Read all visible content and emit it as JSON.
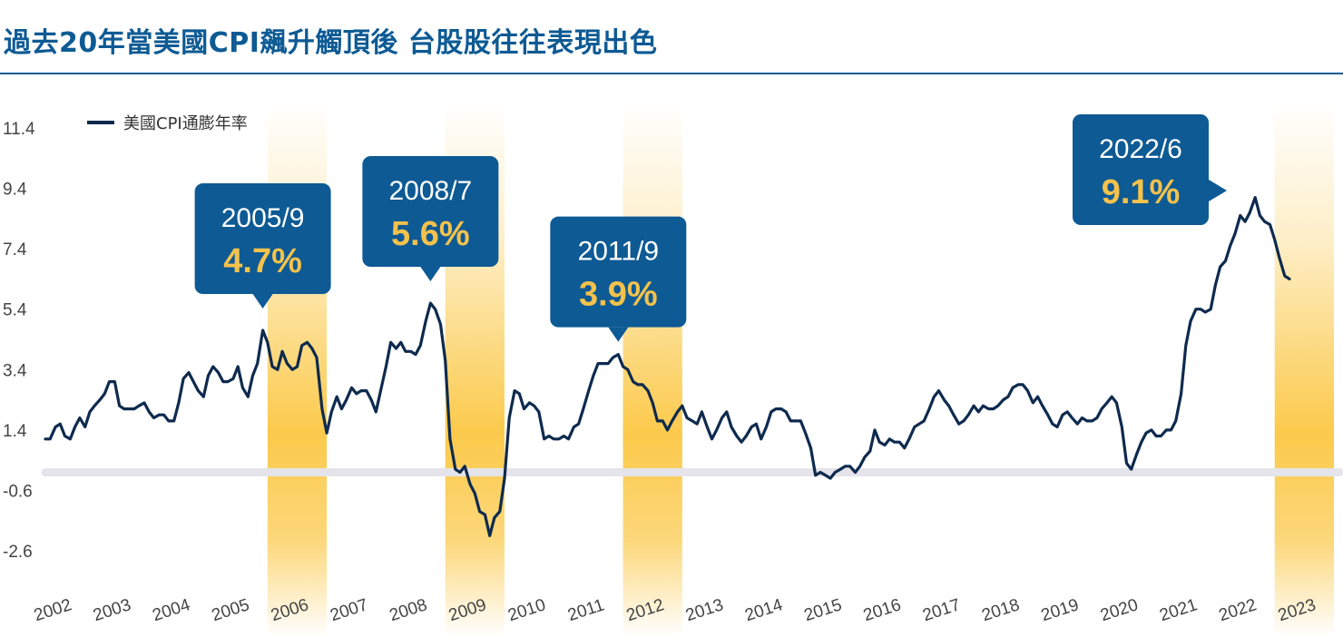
{
  "header": {
    "title": "過去20年當美國CPI飆升觸頂後 台股股往往表現出色"
  },
  "chart_data": {
    "type": "line",
    "title": "過去20年當美國CPI飆升觸頂後 台股股往往表現出色",
    "legend": {
      "label": "美國CPI通膨年率",
      "placement": "top-left"
    },
    "ylim": [
      -2.6,
      11.4
    ],
    "yticks": [
      "11.4",
      "9.4",
      "7.4",
      "5.4",
      "3.4",
      "1.4",
      "-0.6",
      "-2.6"
    ],
    "xticks": [
      "2002",
      "2003",
      "2004",
      "2005",
      "2006",
      "2007",
      "2008",
      "2009",
      "2010",
      "2011",
      "2012",
      "2013",
      "2014",
      "2015",
      "2016",
      "2017",
      "2018",
      "2019",
      "2020",
      "2021",
      "2022",
      "2023"
    ],
    "xlim": [
      2002.0,
      2023.75
    ],
    "zero_line": 0,
    "colors": {
      "line": "#0e2a4e",
      "callout_bg": "#0d5a94",
      "callout_value": "#f5c24c",
      "band": "#fbc742",
      "zero_line": "#e4e4ea",
      "title": "#0d5a94"
    },
    "highlight_bands": [
      {
        "from": 2005.75,
        "to": 2006.75
      },
      {
        "from": 2008.75,
        "to": 2009.75
      },
      {
        "from": 2011.75,
        "to": 2012.75
      },
      {
        "from": 2022.75,
        "to": 2023.75
      }
    ],
    "annotations": [
      {
        "date": "2005/9",
        "value": "4.7%",
        "x": 2005.67,
        "y": 4.7
      },
      {
        "date": "2008/7",
        "value": "5.6%",
        "x": 2008.5,
        "y": 5.6
      },
      {
        "date": "2011/9",
        "value": "3.9%",
        "x": 2011.67,
        "y": 3.9
      },
      {
        "date": "2022/6",
        "value": "9.1%",
        "x": 2022.42,
        "y": 9.1
      }
    ],
    "series": [
      {
        "name": "美國CPI通膨年率",
        "x": [
          2002.0,
          2002.08,
          2002.17,
          2002.25,
          2002.33,
          2002.42,
          2002.5,
          2002.58,
          2002.67,
          2002.75,
          2002.83,
          2002.92,
          2003.0,
          2003.08,
          2003.17,
          2003.25,
          2003.33,
          2003.42,
          2003.5,
          2003.58,
          2003.67,
          2003.75,
          2003.83,
          2003.92,
          2004.0,
          2004.08,
          2004.17,
          2004.25,
          2004.33,
          2004.42,
          2004.5,
          2004.58,
          2004.67,
          2004.75,
          2004.83,
          2004.92,
          2005.0,
          2005.08,
          2005.17,
          2005.25,
          2005.33,
          2005.42,
          2005.5,
          2005.58,
          2005.67,
          2005.75,
          2005.83,
          2005.92,
          2006.0,
          2006.08,
          2006.17,
          2006.25,
          2006.33,
          2006.42,
          2006.5,
          2006.58,
          2006.67,
          2006.75,
          2006.83,
          2006.92,
          2007.0,
          2007.08,
          2007.17,
          2007.25,
          2007.33,
          2007.42,
          2007.5,
          2007.58,
          2007.67,
          2007.75,
          2007.83,
          2007.92,
          2008.0,
          2008.08,
          2008.17,
          2008.25,
          2008.33,
          2008.42,
          2008.5,
          2008.58,
          2008.67,
          2008.75,
          2008.83,
          2008.92,
          2009.0,
          2009.08,
          2009.17,
          2009.25,
          2009.33,
          2009.42,
          2009.5,
          2009.58,
          2009.67,
          2009.75,
          2009.83,
          2009.92,
          2010.0,
          2010.08,
          2010.17,
          2010.25,
          2010.33,
          2010.42,
          2010.5,
          2010.58,
          2010.67,
          2010.75,
          2010.83,
          2010.92,
          2011.0,
          2011.08,
          2011.17,
          2011.25,
          2011.33,
          2011.42,
          2011.5,
          2011.58,
          2011.67,
          2011.75,
          2011.83,
          2011.92,
          2012.0,
          2012.08,
          2012.17,
          2012.25,
          2012.33,
          2012.42,
          2012.5,
          2012.58,
          2012.67,
          2012.75,
          2012.83,
          2012.92,
          2013.0,
          2013.08,
          2013.17,
          2013.25,
          2013.33,
          2013.42,
          2013.5,
          2013.58,
          2013.67,
          2013.75,
          2013.83,
          2013.92,
          2014.0,
          2014.08,
          2014.17,
          2014.25,
          2014.33,
          2014.42,
          2014.5,
          2014.58,
          2014.67,
          2014.75,
          2014.83,
          2014.92,
          2015.0,
          2015.08,
          2015.17,
          2015.25,
          2015.33,
          2015.42,
          2015.5,
          2015.58,
          2015.67,
          2015.75,
          2015.83,
          2015.92,
          2016.0,
          2016.08,
          2016.17,
          2016.25,
          2016.33,
          2016.42,
          2016.5,
          2016.58,
          2016.67,
          2016.75,
          2016.83,
          2016.92,
          2017.0,
          2017.08,
          2017.17,
          2017.25,
          2017.33,
          2017.42,
          2017.5,
          2017.58,
          2017.67,
          2017.75,
          2017.83,
          2017.92,
          2018.0,
          2018.08,
          2018.17,
          2018.25,
          2018.33,
          2018.42,
          2018.5,
          2018.58,
          2018.67,
          2018.75,
          2018.83,
          2018.92,
          2019.0,
          2019.08,
          2019.17,
          2019.25,
          2019.33,
          2019.42,
          2019.5,
          2019.58,
          2019.67,
          2019.75,
          2019.83,
          2019.92,
          2020.0,
          2020.08,
          2020.17,
          2020.25,
          2020.33,
          2020.42,
          2020.5,
          2020.58,
          2020.67,
          2020.75,
          2020.83,
          2020.92,
          2021.0,
          2021.08,
          2021.17,
          2021.25,
          2021.33,
          2021.42,
          2021.5,
          2021.58,
          2021.67,
          2021.75,
          2021.83,
          2021.92,
          2022.0,
          2022.08,
          2022.17,
          2022.25,
          2022.33,
          2022.42,
          2022.5,
          2022.58,
          2022.67,
          2022.75,
          2022.83,
          2022.92,
          2023.0
        ],
        "values": [
          1.1,
          1.1,
          1.5,
          1.6,
          1.2,
          1.1,
          1.5,
          1.8,
          1.5,
          2.0,
          2.2,
          2.4,
          2.6,
          3.0,
          3.0,
          2.2,
          2.1,
          2.1,
          2.1,
          2.2,
          2.3,
          2.0,
          1.8,
          1.9,
          1.9,
          1.7,
          1.7,
          2.3,
          3.1,
          3.3,
          3.0,
          2.7,
          2.5,
          3.2,
          3.5,
          3.3,
          3.0,
          3.0,
          3.1,
          3.5,
          2.8,
          2.5,
          3.2,
          3.6,
          4.7,
          4.3,
          3.5,
          3.4,
          4.0,
          3.6,
          3.4,
          3.5,
          4.2,
          4.3,
          4.1,
          3.8,
          2.1,
          1.3,
          2.0,
          2.5,
          2.1,
          2.4,
          2.8,
          2.6,
          2.7,
          2.7,
          2.4,
          2.0,
          2.8,
          3.5,
          4.3,
          4.1,
          4.3,
          4.0,
          4.0,
          3.9,
          4.2,
          5.0,
          5.6,
          5.4,
          4.9,
          3.7,
          1.1,
          0.1,
          0.0,
          0.2,
          -0.4,
          -0.7,
          -1.3,
          -1.4,
          -2.1,
          -1.5,
          -1.3,
          -0.2,
          1.8,
          2.7,
          2.6,
          2.1,
          2.3,
          2.2,
          2.0,
          1.1,
          1.2,
          1.1,
          1.1,
          1.2,
          1.1,
          1.5,
          1.6,
          2.1,
          2.7,
          3.2,
          3.6,
          3.6,
          3.6,
          3.8,
          3.9,
          3.5,
          3.4,
          3.0,
          2.9,
          2.9,
          2.7,
          2.3,
          1.7,
          1.7,
          1.4,
          1.7,
          2.0,
          2.2,
          1.8,
          1.7,
          1.6,
          2.0,
          1.5,
          1.1,
          1.4,
          1.8,
          2.0,
          1.5,
          1.2,
          1.0,
          1.2,
          1.5,
          1.6,
          1.1,
          1.5,
          2.0,
          2.1,
          2.1,
          2.0,
          1.7,
          1.7,
          1.7,
          1.3,
          0.8,
          -0.1,
          0.0,
          -0.1,
          -0.2,
          0.0,
          0.1,
          0.2,
          0.2,
          0.0,
          0.2,
          0.5,
          0.7,
          1.4,
          1.0,
          0.9,
          1.1,
          1.0,
          1.0,
          0.8,
          1.1,
          1.5,
          1.6,
          1.7,
          2.1,
          2.5,
          2.7,
          2.4,
          2.2,
          1.9,
          1.6,
          1.7,
          1.9,
          2.2,
          2.0,
          2.2,
          2.1,
          2.1,
          2.2,
          2.4,
          2.5,
          2.8,
          2.9,
          2.9,
          2.7,
          2.3,
          2.5,
          2.2,
          1.9,
          1.6,
          1.5,
          1.9,
          2.0,
          1.8,
          1.6,
          1.8,
          1.7,
          1.7,
          1.8,
          2.1,
          2.3,
          2.5,
          2.3,
          1.5,
          0.3,
          0.1,
          0.6,
          1.0,
          1.3,
          1.4,
          1.2,
          1.2,
          1.4,
          1.4,
          1.7,
          2.6,
          4.2,
          5.0,
          5.4,
          5.4,
          5.3,
          5.4,
          6.2,
          6.8,
          7.0,
          7.5,
          7.9,
          8.5,
          8.3,
          8.6,
          9.1,
          8.5,
          8.3,
          8.2,
          7.7,
          7.1,
          6.5,
          6.4
        ]
      }
    ]
  }
}
